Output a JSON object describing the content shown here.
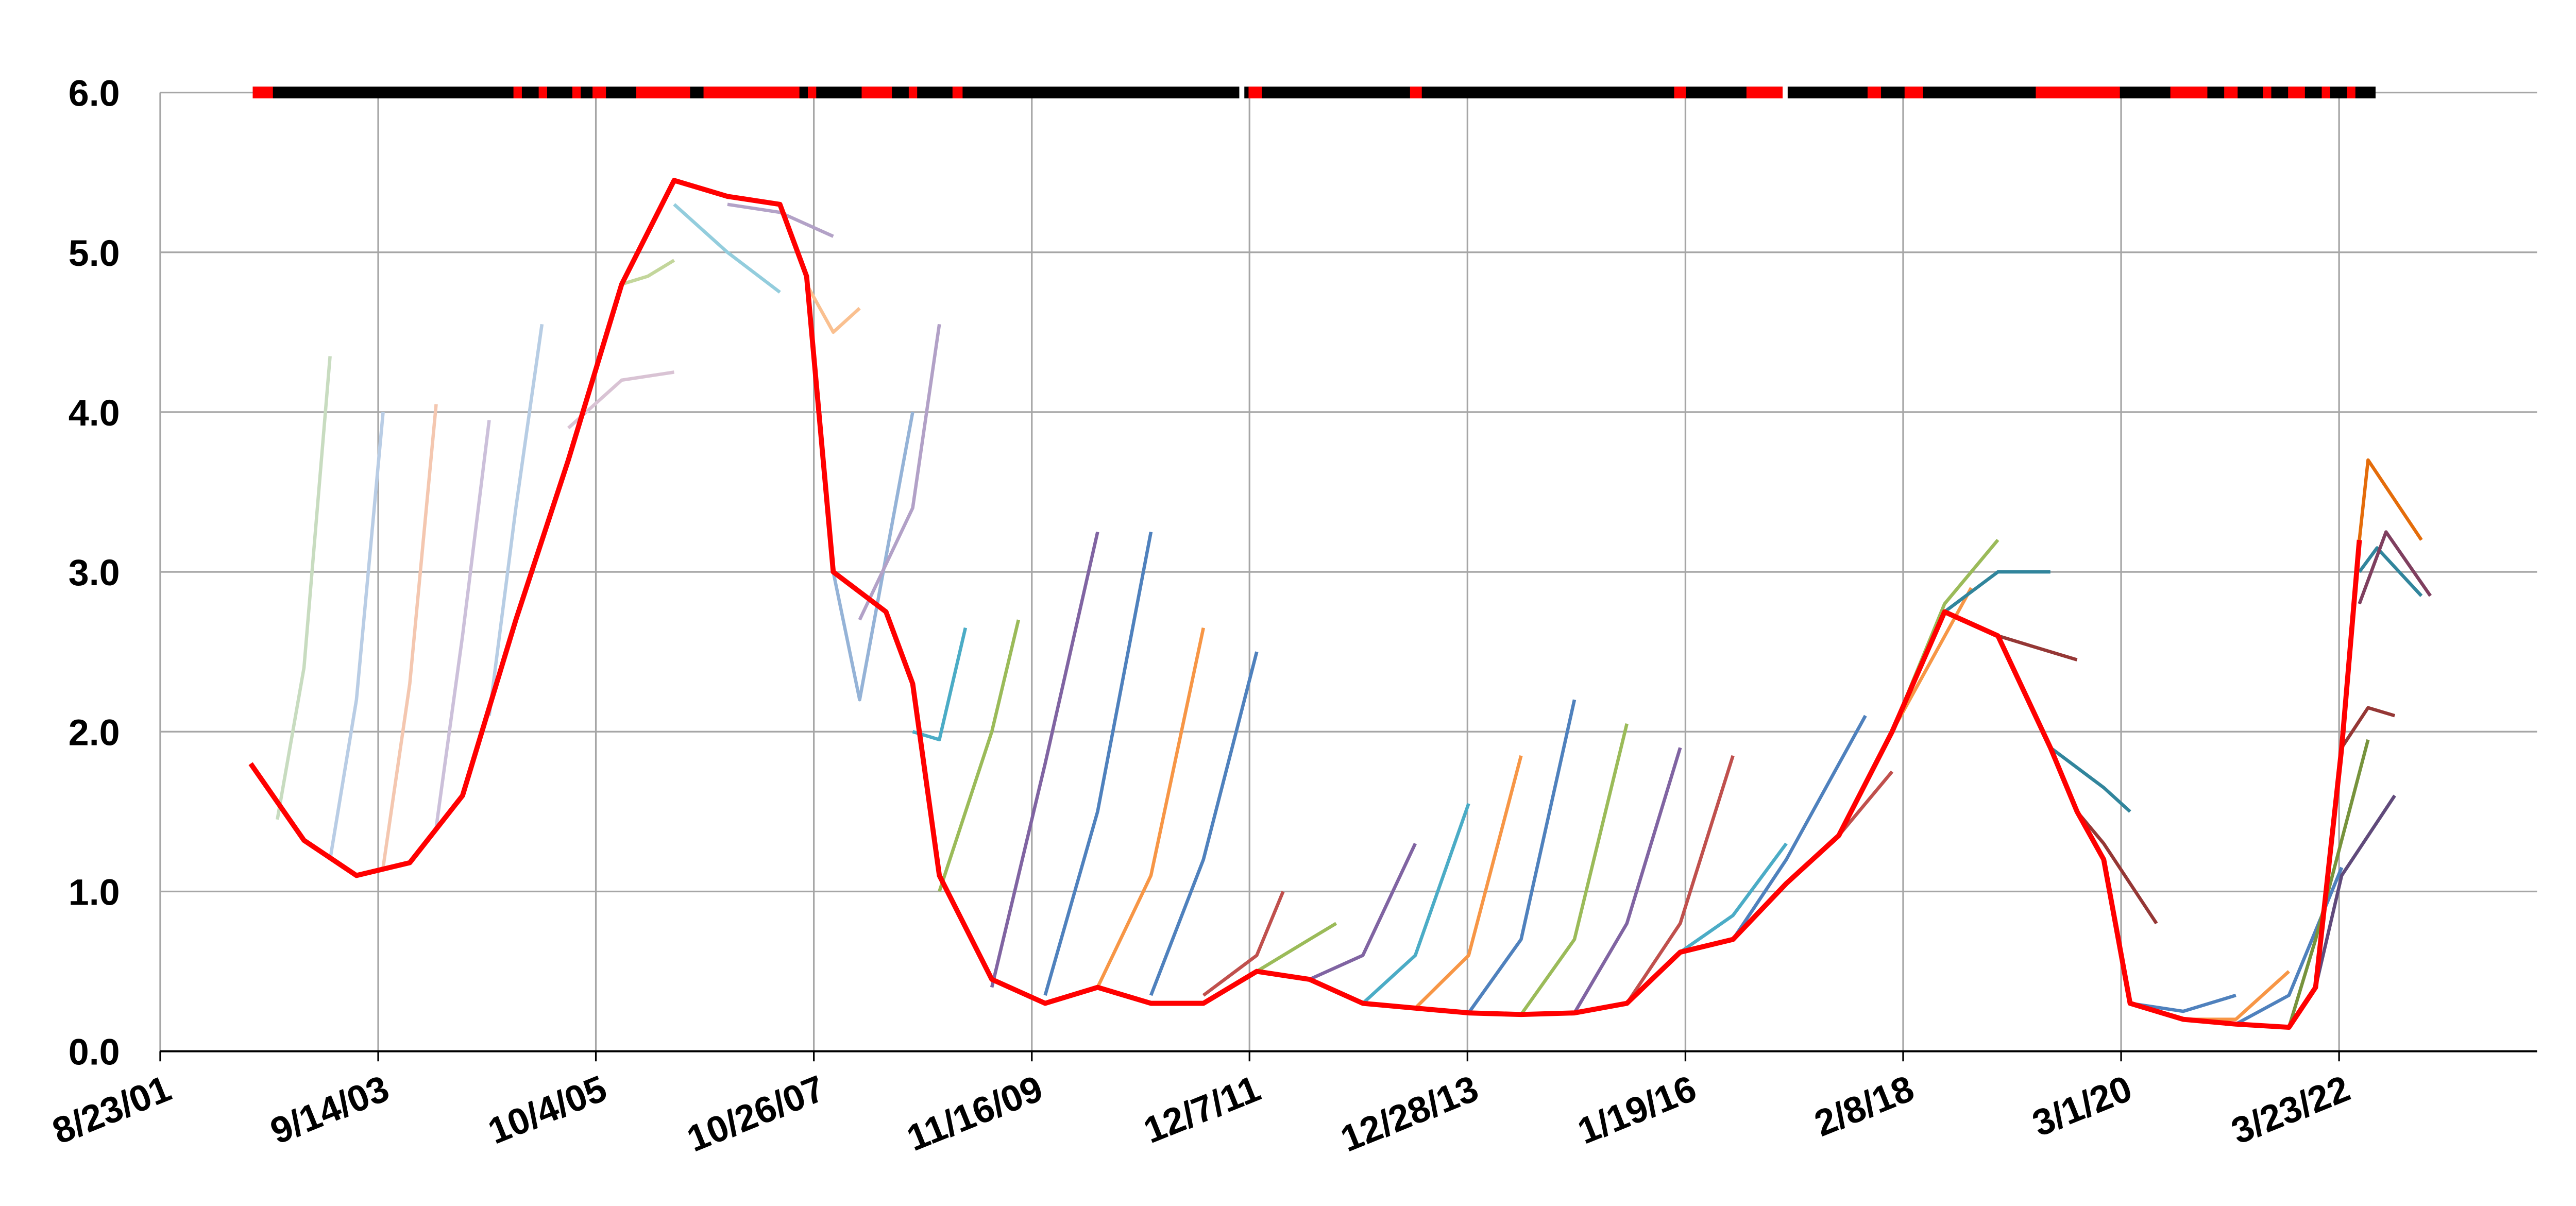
{
  "chart_data": {
    "type": "line",
    "grid": true,
    "ylim": [
      0,
      6
    ],
    "yticks": [
      {
        "value": 0,
        "label": "0.0"
      },
      {
        "value": 1,
        "label": "1.0"
      },
      {
        "value": 2,
        "label": "2.0"
      },
      {
        "value": 3,
        "label": "3.0"
      },
      {
        "value": 4,
        "label": "4.0"
      },
      {
        "value": 5,
        "label": "5.0"
      },
      {
        "value": 6,
        "label": "6.0"
      }
    ],
    "xlim": [
      "8/23/01",
      "2/4/24"
    ],
    "xticks": [
      "8/23/01",
      "9/14/03",
      "10/4/05",
      "10/26/07",
      "11/16/09",
      "12/7/11",
      "12/28/13",
      "1/19/16",
      "2/8/18",
      "3/1/20",
      "3/23/22"
    ],
    "series": [
      {
        "color": "#c8dcc0",
        "x": [
          "10/1/02",
          "1/1/03",
          "4/1/03"
        ],
        "values": [
          1.45,
          2.4,
          4.35
        ]
      },
      {
        "color": "#b9cde5",
        "x": [
          "4/1/03",
          "7/1/03",
          "10/1/03"
        ],
        "values": [
          1.2,
          2.2,
          4.0
        ]
      },
      {
        "color": "#f4c7b0",
        "x": [
          "10/1/03",
          "1/1/04",
          "4/1/04"
        ],
        "values": [
          1.15,
          2.3,
          4.05
        ]
      },
      {
        "color": "#ccc0da",
        "x": [
          "4/1/04",
          "7/1/04",
          "10/1/04"
        ],
        "values": [
          1.4,
          2.6,
          3.95
        ]
      },
      {
        "color": "#b7cde4",
        "x": [
          "10/1/04",
          "1/1/05",
          "4/1/05"
        ],
        "values": [
          2.1,
          3.4,
          4.55
        ]
      },
      {
        "color": "#d9c3d4",
        "x": [
          "7/1/05",
          "1/1/06",
          "7/1/06"
        ],
        "values": [
          3.9,
          4.2,
          4.25
        ]
      },
      {
        "color": "#c3d69b",
        "x": [
          "1/1/06",
          "4/1/06",
          "7/1/06"
        ],
        "values": [
          4.8,
          4.85,
          4.95
        ]
      },
      {
        "color": "#93cddd",
        "x": [
          "7/1/06",
          "1/1/07",
          "7/1/07"
        ],
        "values": [
          5.3,
          5.0,
          4.75
        ]
      },
      {
        "color": "#b3a2c7",
        "x": [
          "1/1/07",
          "7/1/07",
          "1/1/08"
        ],
        "values": [
          5.3,
          5.25,
          5.1
        ]
      },
      {
        "color": "#fac090",
        "x": [
          "10/1/07",
          "1/1/08",
          "4/1/08"
        ],
        "values": [
          4.8,
          4.5,
          4.65
        ]
      },
      {
        "color": "#95b3d7",
        "x": [
          "1/1/08",
          "4/1/08",
          "10/1/08"
        ],
        "values": [
          3.0,
          2.2,
          4.0
        ]
      },
      {
        "color": "#b2a1c7",
        "x": [
          "4/1/08",
          "10/1/08",
          "1/1/09"
        ],
        "values": [
          2.7,
          3.4,
          4.55
        ]
      },
      {
        "color": "#4bacc6",
        "x": [
          "10/1/08",
          "1/1/09",
          "4/1/09"
        ],
        "values": [
          2.0,
          1.95,
          2.65
        ]
      },
      {
        "color": "#9bbb59",
        "x": [
          "1/1/09",
          "7/1/09",
          "10/1/09"
        ],
        "values": [
          1.0,
          2.0,
          2.7
        ]
      },
      {
        "color": "#8064a2",
        "x": [
          "7/1/09",
          "1/1/10",
          "7/1/10"
        ],
        "values": [
          0.4,
          1.8,
          3.25
        ]
      },
      {
        "color": "#4f81bd",
        "x": [
          "1/1/10",
          "7/1/10",
          "1/1/11"
        ],
        "values": [
          0.35,
          1.5,
          3.25
        ]
      },
      {
        "color": "#f79646",
        "x": [
          "7/1/10",
          "1/1/11",
          "7/1/11"
        ],
        "values": [
          0.4,
          1.1,
          2.65
        ]
      },
      {
        "color": "#4f81bd",
        "x": [
          "1/1/11",
          "7/1/11",
          "1/1/12"
        ],
        "values": [
          0.35,
          1.2,
          2.5
        ]
      },
      {
        "color": "#c0504d",
        "x": [
          "7/1/11",
          "1/1/12",
          "4/1/12"
        ],
        "values": [
          0.35,
          0.6,
          1.0
        ]
      },
      {
        "color": "#9bbb59",
        "x": [
          "1/1/12",
          "7/1/12",
          "10/1/12"
        ],
        "values": [
          0.5,
          0.7,
          0.8
        ]
      },
      {
        "color": "#8064a2",
        "x": [
          "7/1/12",
          "1/1/13",
          "7/1/13"
        ],
        "values": [
          0.45,
          0.6,
          1.3
        ]
      },
      {
        "color": "#4bacc6",
        "x": [
          "1/1/13",
          "7/1/13",
          "1/1/14"
        ],
        "values": [
          0.3,
          0.6,
          1.55
        ]
      },
      {
        "color": "#f79646",
        "x": [
          "7/1/13",
          "1/1/14",
          "7/1/14"
        ],
        "values": [
          0.27,
          0.6,
          1.85
        ]
      },
      {
        "color": "#4f81bd",
        "x": [
          "1/1/14",
          "7/1/14",
          "1/1/15"
        ],
        "values": [
          0.24,
          0.7,
          2.2
        ]
      },
      {
        "color": "#9bbb59",
        "x": [
          "7/1/14",
          "1/1/15",
          "7/1/15"
        ],
        "values": [
          0.23,
          0.7,
          2.05
        ]
      },
      {
        "color": "#8064a2",
        "x": [
          "1/1/15",
          "7/1/15",
          "1/1/16"
        ],
        "values": [
          0.24,
          0.8,
          1.9
        ]
      },
      {
        "color": "#c0504d",
        "x": [
          "7/1/15",
          "1/1/16",
          "7/1/16"
        ],
        "values": [
          0.3,
          0.8,
          1.85
        ]
      },
      {
        "color": "#4bacc6",
        "x": [
          "1/1/16",
          "7/1/16",
          "1/1/17"
        ],
        "values": [
          0.62,
          0.85,
          1.3
        ]
      },
      {
        "color": "#4f81bd",
        "x": [
          "7/1/16",
          "1/1/17",
          "10/1/17"
        ],
        "values": [
          0.7,
          1.2,
          2.1
        ]
      },
      {
        "color": "#c0504d",
        "x": [
          "1/1/17",
          "7/1/17",
          "1/1/18"
        ],
        "values": [
          1.05,
          1.35,
          1.75
        ]
      },
      {
        "color": "#f79646",
        "x": [
          "7/1/17",
          "1/1/18",
          "10/1/18"
        ],
        "values": [
          1.35,
          2.0,
          2.9
        ]
      },
      {
        "color": "#9bbb59",
        "x": [
          "1/1/18",
          "7/1/18",
          "1/1/19"
        ],
        "values": [
          2.0,
          2.8,
          3.2
        ]
      },
      {
        "color": "#31859c",
        "x": [
          "7/1/18",
          "1/1/19",
          "7/1/19"
        ],
        "values": [
          2.75,
          3.0,
          3.0
        ]
      },
      {
        "color": "#953735",
        "x": [
          "1/1/19",
          "7/1/19",
          "10/1/19"
        ],
        "values": [
          2.6,
          2.5,
          2.45
        ]
      },
      {
        "color": "#31859c",
        "x": [
          "7/1/19",
          "1/1/20",
          "4/1/20"
        ],
        "values": [
          1.9,
          1.65,
          1.5
        ]
      },
      {
        "color": "#953735",
        "x": [
          "10/1/19",
          "1/1/20",
          "7/1/20"
        ],
        "values": [
          1.5,
          1.3,
          0.8
        ]
      },
      {
        "color": "#4f81bd",
        "x": [
          "4/1/20",
          "10/1/20",
          "4/1/21"
        ],
        "values": [
          0.3,
          0.25,
          0.35
        ]
      },
      {
        "color": "#f79646",
        "x": [
          "10/1/20",
          "4/1/21",
          "10/1/21"
        ],
        "values": [
          0.2,
          0.2,
          0.5
        ]
      },
      {
        "color": "#4f81bd",
        "x": [
          "4/1/21",
          "10/1/21",
          "4/1/22"
        ],
        "values": [
          0.17,
          0.35,
          1.15
        ]
      },
      {
        "color": "#77933c",
        "x": [
          "10/1/21",
          "1/1/22",
          "7/1/22"
        ],
        "values": [
          0.15,
          0.7,
          1.95
        ]
      },
      {
        "color": "#604a7b",
        "x": [
          "1/1/22",
          "4/1/22",
          "10/1/22"
        ],
        "values": [
          0.4,
          1.1,
          1.6
        ]
      },
      {
        "color": "#953735",
        "x": [
          "4/1/22",
          "7/1/22",
          "10/1/22"
        ],
        "values": [
          1.9,
          2.15,
          2.1
        ]
      },
      {
        "color": "#e46c0a",
        "x": [
          "6/1/22",
          "7/1/22",
          "1/1/23"
        ],
        "values": [
          3.2,
          3.7,
          3.2
        ]
      },
      {
        "color": "#31859c",
        "x": [
          "6/1/22",
          "8/1/22",
          "1/1/23"
        ],
        "values": [
          3.0,
          3.15,
          2.85
        ]
      },
      {
        "color": "#7f3f5f",
        "x": [
          "6/1/22",
          "9/1/22",
          "2/1/23"
        ],
        "values": [
          2.8,
          3.25,
          2.85
        ]
      },
      {
        "color": "#ff0000",
        "x": [
          "7/1/02",
          "1/1/03",
          "7/1/03",
          "1/1/04",
          "7/1/04",
          "1/1/05",
          "7/1/05",
          "1/1/06",
          "7/1/06",
          "1/1/07",
          "7/1/07",
          "10/1/07",
          "1/1/08",
          "7/1/08",
          "10/1/08",
          "1/1/09",
          "7/1/09",
          "1/1/10",
          "7/1/10",
          "1/1/11",
          "7/1/11",
          "1/1/12",
          "7/1/12",
          "1/1/13",
          "7/1/13",
          "1/1/14",
          "7/1/14",
          "1/1/15",
          "7/1/15",
          "1/1/16",
          "7/1/16",
          "1/1/17",
          "7/1/17",
          "1/1/18",
          "7/1/18",
          "1/1/19",
          "7/1/19",
          "10/1/19",
          "1/1/20",
          "4/1/20",
          "10/1/20",
          "4/1/21",
          "10/1/21",
          "1/1/22",
          "4/1/22",
          "6/1/22"
        ],
        "values": [
          1.8,
          1.32,
          1.1,
          1.18,
          1.6,
          2.7,
          3.7,
          4.8,
          5.45,
          5.35,
          5.3,
          4.85,
          3.0,
          2.75,
          2.3,
          1.1,
          0.45,
          0.3,
          0.4,
          0.3,
          0.3,
          0.5,
          0.45,
          0.3,
          0.27,
          0.24,
          0.23,
          0.24,
          0.3,
          0.62,
          0.7,
          1.05,
          1.35,
          2.0,
          2.75,
          2.6,
          1.9,
          1.5,
          1.2,
          0.3,
          0.2,
          0.17,
          0.15,
          0.4,
          1.9,
          3.2
        ]
      }
    ]
  }
}
